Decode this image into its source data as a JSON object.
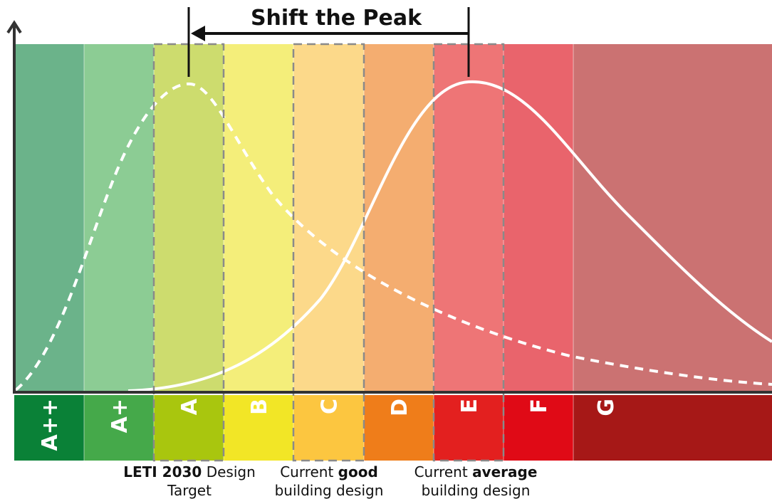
{
  "title": "Shift the Peak",
  "bands": [
    {
      "label": "A++",
      "upper_color": "#6bb38a",
      "lower_color": "#0a8137"
    },
    {
      "label": "A+",
      "upper_color": "#8ccc94",
      "lower_color": "#45a94a"
    },
    {
      "label": "A",
      "upper_color": "#cddc6e",
      "lower_color": "#a9c60e"
    },
    {
      "label": "B",
      "upper_color": "#f4ee7a",
      "lower_color": "#f2e626"
    },
    {
      "label": "C",
      "upper_color": "#fcd98a",
      "lower_color": "#fcc640"
    },
    {
      "label": "D",
      "upper_color": "#f4ad70",
      "lower_color": "#ef7d1a"
    },
    {
      "label": "E",
      "upper_color": "#ee7576",
      "lower_color": "#e3201f"
    },
    {
      "label": "F",
      "upper_color": "#e9646c",
      "lower_color": "#e00a16"
    },
    {
      "label": "G",
      "upper_color": "#cb7272",
      "lower_color": "#a61817"
    }
  ],
  "captions": [
    {
      "line1": [
        {
          "text": "LETI 2030",
          "bold": true
        },
        {
          "text": " Design",
          "bold": false
        }
      ],
      "line2": "Target"
    },
    {
      "line1": [
        {
          "text": "Current ",
          "bold": false
        },
        {
          "text": "good",
          "bold": true
        }
      ],
      "line2": "building design"
    },
    {
      "line1": [
        {
          "text": "Current ",
          "bold": false
        },
        {
          "text": "average",
          "bold": true
        }
      ],
      "line2": "building design"
    }
  ]
}
